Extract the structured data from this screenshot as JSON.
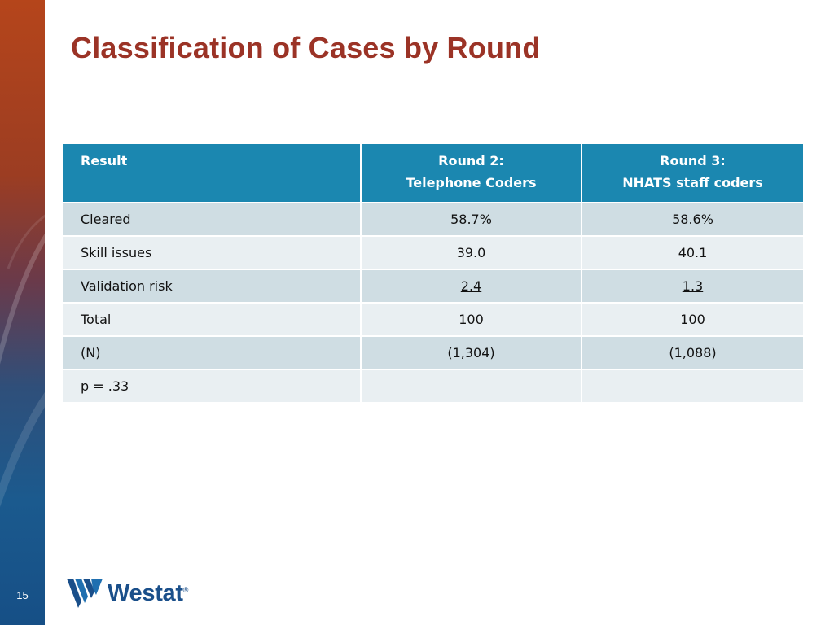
{
  "slide": {
    "title": "Classification of Cases by Round",
    "page_number": "15"
  },
  "table": {
    "headers": [
      {
        "line1": "Result",
        "line2": ""
      },
      {
        "line1": "Round 2:",
        "line2": "Telephone Coders"
      },
      {
        "line1": "Round 3:",
        "line2": "NHATS staff coders"
      }
    ],
    "rows": [
      {
        "label": "Cleared",
        "round2": "58.7%",
        "round3": "58.6%"
      },
      {
        "label": "Skill issues",
        "round2": "39.0",
        "round3": "40.1"
      },
      {
        "label": "Validation risk",
        "round2": "2.4",
        "round3": "1.3"
      },
      {
        "label": "Total",
        "round2": "100",
        "round3": "100"
      },
      {
        "label": "(N)",
        "round2": "(1,304)",
        "round3": "(1,088)"
      },
      {
        "label": "p = .33",
        "round2": "",
        "round3": ""
      }
    ]
  },
  "logo": {
    "word": "Westat",
    "mark": "®"
  },
  "colors": {
    "title": "#9b3326",
    "header_bg": "#1b87b0",
    "row_shade": "#cfdde3",
    "row_plain": "#e9eff2",
    "brand_blue": "#1a4f8a"
  }
}
